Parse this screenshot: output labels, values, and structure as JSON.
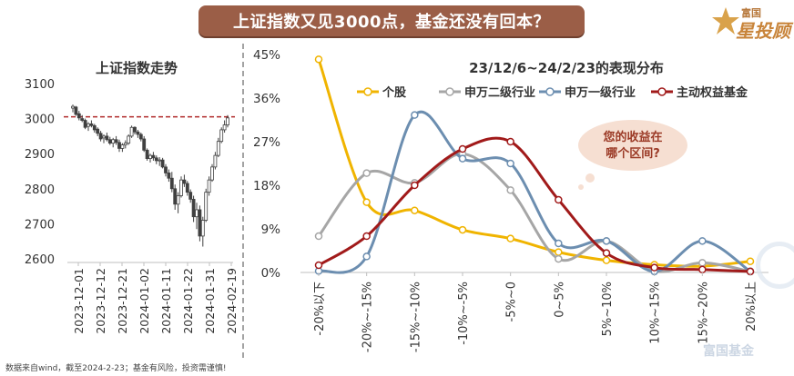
{
  "banner_title": "上证指数又见3000点，基金还没有回本？",
  "logo": {
    "brand": "富国",
    "name": "星投顾"
  },
  "footnote": "数据来自wind，截至2024-2-23；基金有风险，投资需谨慎!",
  "watermark": "富国基金",
  "bubble_text": [
    "您的收益在",
    "哪个区间?"
  ],
  "colors": {
    "banner": "#9b5e47",
    "individual_stock": "#f0b400",
    "sw_level2": "#a6a6a6",
    "sw_level1": "#6c8eb0",
    "active_equity_fund": "#a11a1a",
    "candle": "#404040",
    "ref_line": "#b02a2a",
    "bubble": "#f6dfd2"
  },
  "chart_data": [
    {
      "type": "candlestick",
      "title": "上证指数走势",
      "x_tick_labels": [
        "2023-12-01",
        "2023-12-12",
        "2023-12-21",
        "2024-01-02",
        "2024-01-11",
        "2024-01-22",
        "2024-01-31",
        "2024-02-19"
      ],
      "y_ticks": [
        2600,
        2700,
        2800,
        2900,
        3000,
        3100
      ],
      "ylim": [
        2600,
        3100
      ],
      "reference_line": 3005,
      "ohlc": [
        [
          3030,
          3040,
          3018,
          3035
        ],
        [
          3033,
          3036,
          3008,
          3012
        ],
        [
          3014,
          3022,
          2995,
          3002
        ],
        [
          3000,
          3010,
          2990,
          2995
        ],
        [
          2995,
          3000,
          2970,
          2975
        ],
        [
          2978,
          2990,
          2965,
          2985
        ],
        [
          2985,
          2995,
          2975,
          2980
        ],
        [
          2980,
          2985,
          2960,
          2968
        ],
        [
          2970,
          2975,
          2950,
          2958
        ],
        [
          2958,
          2965,
          2935,
          2942
        ],
        [
          2945,
          2955,
          2930,
          2950
        ],
        [
          2950,
          2960,
          2935,
          2940
        ],
        [
          2940,
          2948,
          2925,
          2930
        ],
        [
          2930,
          2945,
          2918,
          2940
        ],
        [
          2940,
          2950,
          2925,
          2932
        ],
        [
          2932,
          2940,
          2905,
          2915
        ],
        [
          2915,
          2930,
          2905,
          2925
        ],
        [
          2925,
          2938,
          2915,
          2930
        ],
        [
          2930,
          2955,
          2925,
          2950
        ],
        [
          2950,
          2980,
          2945,
          2975
        ],
        [
          2975,
          2978,
          2955,
          2962
        ],
        [
          2962,
          2968,
          2945,
          2955
        ],
        [
          2955,
          2960,
          2935,
          2942
        ],
        [
          2942,
          2950,
          2905,
          2910
        ],
        [
          2910,
          2915,
          2880,
          2886
        ],
        [
          2886,
          2900,
          2875,
          2895
        ],
        [
          2895,
          2905,
          2880,
          2888
        ],
        [
          2888,
          2895,
          2870,
          2880
        ],
        [
          2880,
          2890,
          2865,
          2882
        ],
        [
          2882,
          2888,
          2858,
          2862
        ],
        [
          2862,
          2870,
          2835,
          2845
        ],
        [
          2845,
          2855,
          2820,
          2830
        ],
        [
          2830,
          2848,
          2790,
          2800
        ],
        [
          2800,
          2812,
          2740,
          2756
        ],
        [
          2756,
          2790,
          2730,
          2780
        ],
        [
          2780,
          2835,
          2775,
          2825
        ],
        [
          2825,
          2840,
          2805,
          2815
        ],
        [
          2815,
          2822,
          2780,
          2790
        ],
        [
          2790,
          2798,
          2760,
          2770
        ],
        [
          2770,
          2780,
          2705,
          2720
        ],
        [
          2720,
          2760,
          2685,
          2740
        ],
        [
          2740,
          2752,
          2650,
          2665
        ],
        [
          2665,
          2720,
          2635,
          2710
        ],
        [
          2710,
          2800,
          2705,
          2790
        ],
        [
          2790,
          2835,
          2780,
          2825
        ],
        [
          2825,
          2870,
          2820,
          2862
        ],
        [
          2862,
          2905,
          2855,
          2895
        ],
        [
          2895,
          2945,
          2890,
          2935
        ],
        [
          2935,
          2975,
          2930,
          2968
        ],
        [
          2968,
          2995,
          2960,
          2982
        ],
        [
          2982,
          3010,
          2975,
          3002
        ]
      ]
    },
    {
      "type": "line",
      "title": "23/12/6~24/2/23的表现分布",
      "categories": [
        "-20%以下",
        "-20%~-15%",
        "-15%~-10%",
        "-10%~-5%",
        "-5%~0",
        "0~5%",
        "5%~10%",
        "10%~15%",
        "15%~20%",
        "20%以上"
      ],
      "y_ticks": [
        "0%",
        "9%",
        "18%",
        "27%",
        "36%",
        "45%"
      ],
      "ylim": [
        0,
        45
      ],
      "legend_position": "top",
      "series": [
        {
          "name": "个股",
          "color": "#f0b400",
          "values": [
            44,
            14.5,
            12.8,
            8.8,
            7,
            4.2,
            2.5,
            1.6,
            1.3,
            2.3
          ]
        },
        {
          "name": "申万二级行业",
          "color": "#a6a6a6",
          "values": [
            7.5,
            20.5,
            18.5,
            24.5,
            17,
            2.8,
            6.5,
            0.3,
            2,
            0.2
          ]
        },
        {
          "name": "申万一级行业",
          "color": "#6c8eb0",
          "values": [
            0.3,
            3.3,
            32.5,
            23.5,
            22.5,
            6,
            6.5,
            0.2,
            6.5,
            0.2
          ]
        },
        {
          "name": "主动权益基金",
          "color": "#a11a1a",
          "values": [
            1.5,
            7.5,
            18,
            25.5,
            27,
            15,
            4,
            1,
            0.6,
            0.2
          ]
        }
      ]
    }
  ]
}
